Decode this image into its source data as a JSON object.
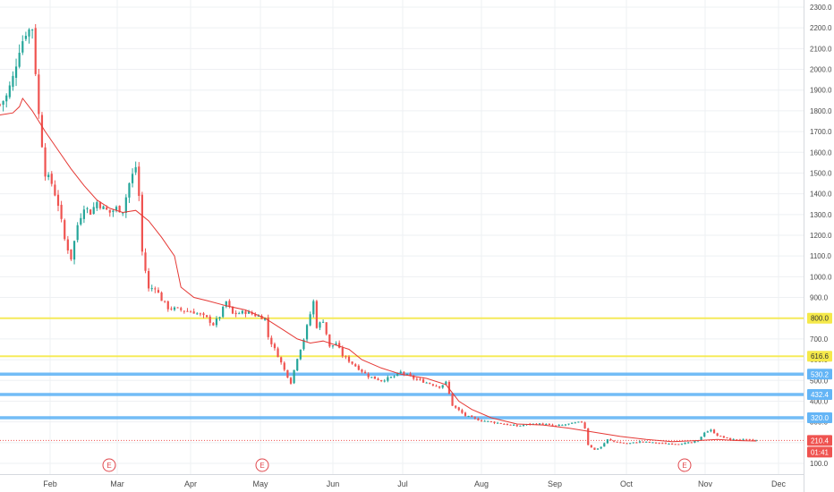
{
  "colors": {
    "up": "#26a69a",
    "down": "#ef5350",
    "ma_line": "#e53935",
    "yellow_level": "#f5e94a",
    "blue_level": "#64b5f6",
    "grid": "#eef0f3",
    "axis_text": "#4a4a4a",
    "price_tag": "#ef5350",
    "earnings": "#e0484d"
  },
  "chart_data": {
    "type": "candlestick",
    "title": "",
    "xlabel": "",
    "ylabel": "",
    "ylim": [
      70,
      2330
    ],
    "y_ticks": [
      100,
      200,
      300,
      400,
      500,
      600,
      700,
      800,
      900,
      1000,
      1100,
      1200,
      1300,
      1400,
      1500,
      1600,
      1700,
      1800,
      1900,
      2000,
      2100,
      2200,
      2300
    ],
    "y_tick_labels": [
      "100.0",
      "200.0",
      "300.0",
      "400.0",
      "500.0",
      "600.0",
      "700.0",
      "800.0",
      "900.0",
      "1000.0",
      "1100.0",
      "1200.0",
      "1300.0",
      "1400.0",
      "1500.0",
      "1600.0",
      "1700.0",
      "1800.0",
      "1900.0",
      "2000.0",
      "2100.0",
      "2200.0",
      "2300.0"
    ],
    "x_labels": [
      "Feb",
      "Mar",
      "Apr",
      "May",
      "Jun",
      "Jul",
      "Aug",
      "Sep",
      "Oct",
      "Nov",
      "Dec"
    ],
    "horizontal_levels": [
      {
        "value": 800.0,
        "label": "800.0",
        "color": "#f5e94a"
      },
      {
        "value": 616.6,
        "label": "616.6",
        "color": "#f5e94a"
      },
      {
        "value": 530.2,
        "label": "530.2",
        "color": "#64b5f6"
      },
      {
        "value": 432.4,
        "label": "432.4",
        "color": "#64b5f6"
      },
      {
        "value": 320.0,
        "label": "320.0",
        "color": "#64b5f6"
      }
    ],
    "current_price": {
      "value": 210.4,
      "label": "210.4",
      "countdown": "01:41"
    },
    "earnings_markers": [
      {
        "month": "Mar",
        "label": "E"
      },
      {
        "month": "May",
        "label": "E"
      },
      {
        "month": "Oct",
        "label": "E"
      }
    ],
    "close_path": [
      [
        0,
        1830
      ],
      [
        2,
        1870
      ],
      [
        4,
        1960
      ],
      [
        6,
        2100
      ],
      [
        8,
        2180
      ],
      [
        10,
        2200
      ],
      [
        12,
        1780
      ],
      [
        14,
        1500
      ],
      [
        16,
        1450
      ],
      [
        18,
        1350
      ],
      [
        20,
        1180
      ],
      [
        22,
        1090
      ],
      [
        24,
        1250
      ],
      [
        26,
        1340
      ],
      [
        28,
        1310
      ],
      [
        30,
        1360
      ],
      [
        32,
        1330
      ],
      [
        34,
        1310
      ],
      [
        36,
        1330
      ],
      [
        38,
        1320
      ],
      [
        40,
        1450
      ],
      [
        42,
        1530
      ],
      [
        43,
        1390
      ],
      [
        44,
        1120
      ],
      [
        46,
        940
      ],
      [
        48,
        950
      ],
      [
        50,
        890
      ],
      [
        52,
        850
      ],
      [
        56,
        840
      ],
      [
        60,
        830
      ],
      [
        64,
        800
      ],
      [
        66,
        770
      ],
      [
        68,
        810
      ],
      [
        70,
        880
      ],
      [
        72,
        820
      ],
      [
        76,
        830
      ],
      [
        80,
        810
      ],
      [
        82,
        800
      ],
      [
        83,
        710
      ],
      [
        86,
        620
      ],
      [
        88,
        550
      ],
      [
        90,
        490
      ],
      [
        92,
        610
      ],
      [
        94,
        700
      ],
      [
        96,
        820
      ],
      [
        97,
        880
      ],
      [
        98,
        760
      ],
      [
        100,
        790
      ],
      [
        102,
        660
      ],
      [
        104,
        680
      ],
      [
        106,
        620
      ],
      [
        110,
        570
      ],
      [
        114,
        520
      ],
      [
        118,
        500
      ],
      [
        122,
        520
      ],
      [
        124,
        540
      ],
      [
        128,
        510
      ],
      [
        132,
        490
      ],
      [
        136,
        470
      ],
      [
        138,
        490
      ],
      [
        140,
        380
      ],
      [
        144,
        330
      ],
      [
        148,
        310
      ],
      [
        152,
        300
      ],
      [
        156,
        290
      ],
      [
        160,
        280
      ],
      [
        164,
        290
      ],
      [
        168,
        290
      ],
      [
        172,
        280
      ],
      [
        176,
        290
      ],
      [
        180,
        300
      ],
      [
        181,
        270
      ],
      [
        182,
        190
      ],
      [
        184,
        165
      ],
      [
        186,
        180
      ],
      [
        188,
        215
      ],
      [
        190,
        205
      ],
      [
        194,
        195
      ],
      [
        198,
        205
      ],
      [
        202,
        200
      ],
      [
        206,
        195
      ],
      [
        210,
        195
      ],
      [
        214,
        200
      ],
      [
        216,
        210
      ],
      [
        218,
        250
      ],
      [
        220,
        260
      ],
      [
        222,
        235
      ],
      [
        226,
        215
      ],
      [
        230,
        215
      ],
      [
        234,
        210.4
      ]
    ],
    "moving_average_path": [
      [
        0,
        1780
      ],
      [
        4,
        1790
      ],
      [
        6,
        1820
      ],
      [
        7,
        1860
      ],
      [
        10,
        1800
      ],
      [
        14,
        1700
      ],
      [
        18,
        1610
      ],
      [
        22,
        1520
      ],
      [
        26,
        1440
      ],
      [
        30,
        1370
      ],
      [
        34,
        1330
      ],
      [
        38,
        1310
      ],
      [
        42,
        1320
      ],
      [
        46,
        1270
      ],
      [
        50,
        1190
      ],
      [
        54,
        1100
      ],
      [
        56,
        950
      ],
      [
        60,
        900
      ],
      [
        64,
        885
      ],
      [
        70,
        860
      ],
      [
        76,
        840
      ],
      [
        82,
        800
      ],
      [
        88,
        740
      ],
      [
        92,
        700
      ],
      [
        96,
        680
      ],
      [
        100,
        690
      ],
      [
        104,
        670
      ],
      [
        108,
        650
      ],
      [
        112,
        600
      ],
      [
        118,
        560
      ],
      [
        124,
        530
      ],
      [
        132,
        510
      ],
      [
        138,
        480
      ],
      [
        142,
        400
      ],
      [
        146,
        360
      ],
      [
        152,
        320
      ],
      [
        160,
        290
      ],
      [
        168,
        285
      ],
      [
        176,
        270
      ],
      [
        184,
        250
      ],
      [
        192,
        230
      ],
      [
        200,
        215
      ],
      [
        208,
        205
      ],
      [
        216,
        210
      ],
      [
        222,
        215
      ],
      [
        228,
        210
      ],
      [
        234,
        208
      ]
    ]
  }
}
